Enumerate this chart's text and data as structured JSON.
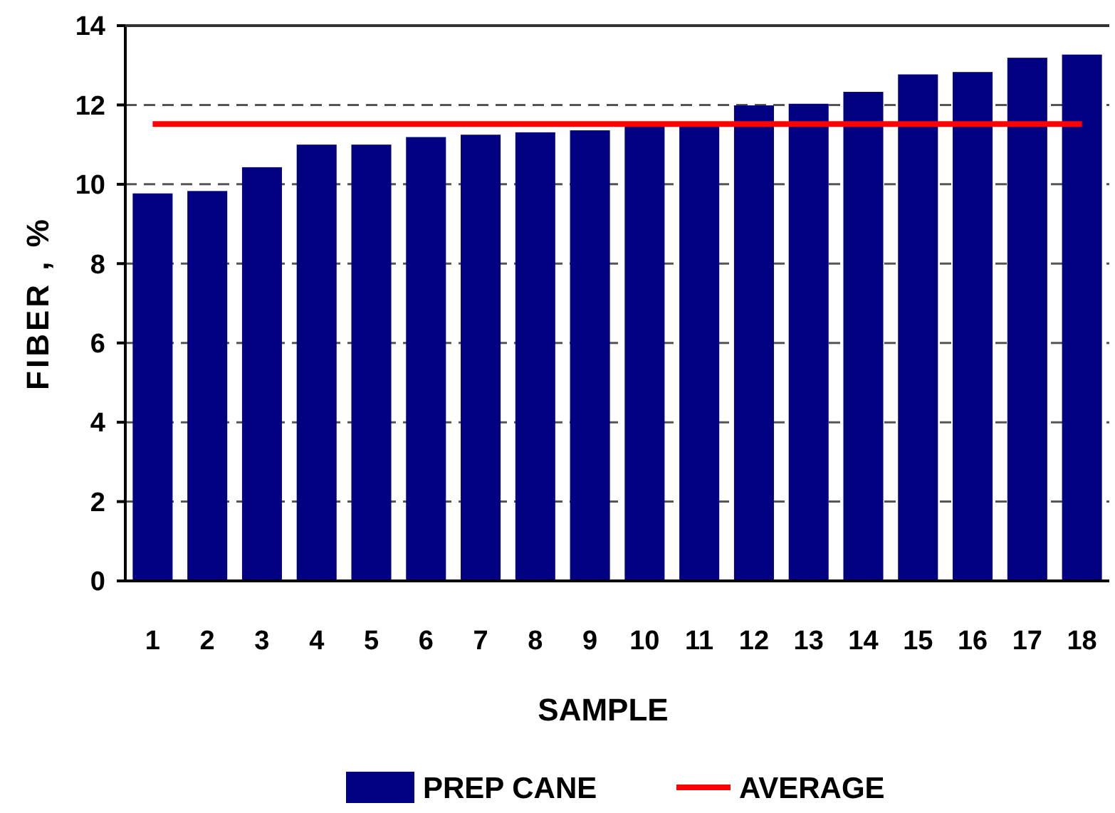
{
  "chart_data": {
    "type": "bar",
    "xlabel": "SAMPLE",
    "ylabel": "FIBER , %",
    "categories": [
      "1",
      "2",
      "3",
      "4",
      "5",
      "6",
      "7",
      "8",
      "9",
      "10",
      "11",
      "12",
      "13",
      "14",
      "15",
      "16",
      "17",
      "18"
    ],
    "series": [
      {
        "name": "PREP CANE",
        "color": "#000080",
        "values": [
          9.77,
          9.83,
          10.43,
          11.0,
          11.0,
          11.19,
          11.25,
          11.31,
          11.36,
          11.5,
          11.55,
          11.99,
          12.03,
          12.33,
          12.77,
          12.83,
          13.19,
          13.27
        ]
      },
      {
        "name": "AVERAGE",
        "type": "line",
        "color": "#ff0000",
        "values": [
          11.52,
          11.52,
          11.52,
          11.52,
          11.52,
          11.52,
          11.52,
          11.52,
          11.52,
          11.52,
          11.52,
          11.52,
          11.52,
          11.52,
          11.52,
          11.52,
          11.52,
          11.52
        ]
      }
    ],
    "ylim": [
      0,
      14
    ],
    "yticks": [
      0,
      2,
      4,
      6,
      8,
      10,
      12,
      14
    ],
    "grid": "y",
    "legend": "bottom"
  }
}
